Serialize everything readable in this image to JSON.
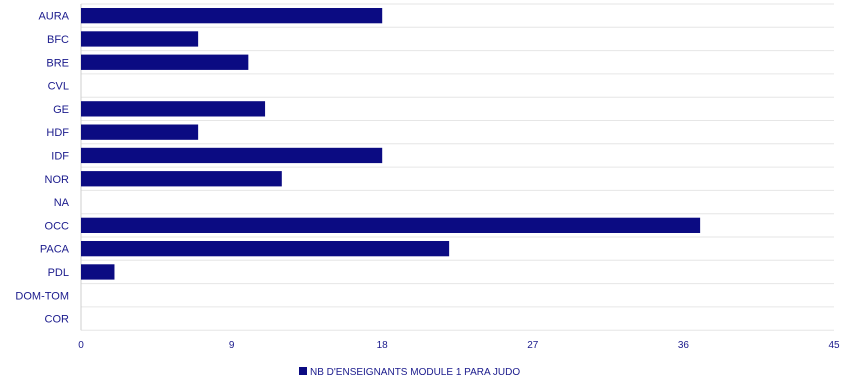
{
  "chart_data": {
    "type": "bar",
    "orientation": "horizontal",
    "categories": [
      "AURA",
      "BFC",
      "BRE",
      "CVL",
      "GE",
      "HDF",
      "IDF",
      "NOR",
      "NA",
      "OCC",
      "PACA",
      "PDL",
      "DOM-TOM",
      "COR"
    ],
    "series": [
      {
        "name": "NB D'ENSEIGNANTS MODULE 1 PARA JUDO",
        "values": [
          18,
          7,
          10,
          0,
          11,
          7,
          18,
          12,
          0,
          37,
          22,
          2,
          0,
          0
        ],
        "color": "#0b0b82"
      }
    ],
    "xlim": [
      0,
      45
    ],
    "xticks": [
      "0",
      "9",
      "18",
      "27",
      "36",
      "45"
    ],
    "grid": "horizontal row separators",
    "legend_position": "bottom-center"
  }
}
